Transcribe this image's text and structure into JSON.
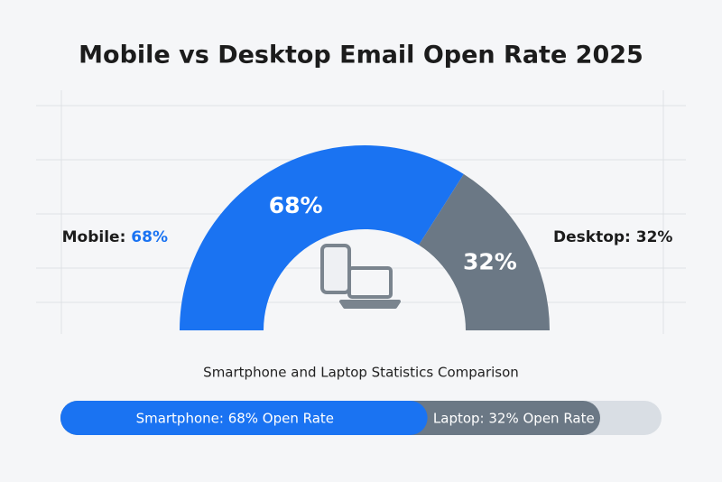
{
  "chart_data": {
    "type": "semi-donut",
    "title": "Mobile vs Desktop Email Open Rate 2025",
    "categories": [
      "Mobile:",
      "Desktop:"
    ],
    "values": [
      68,
      32
    ],
    "value_labels": [
      "68%",
      "32%"
    ],
    "colors": [
      "#1a73f2",
      "#6b7885"
    ],
    "subtitle": "Smartphone and Laptop Statistics Comparison",
    "bar_labels": [
      "Smartphone: 68% Open Rate",
      "Laptop: 32% Open Rate"
    ]
  }
}
